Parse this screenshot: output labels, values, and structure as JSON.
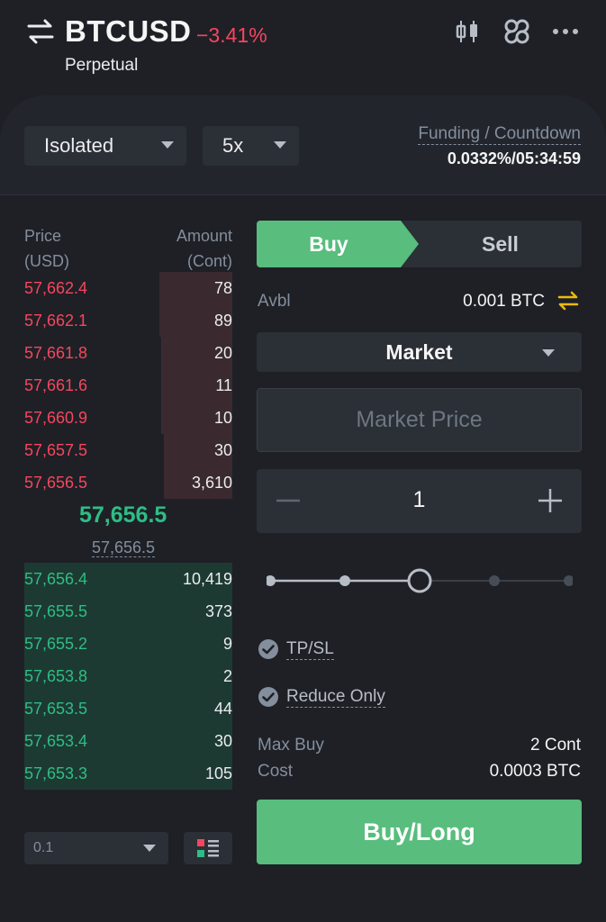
{
  "header": {
    "symbol": "BTCUSD",
    "change": "−3.41%",
    "contract_type": "Perpetual",
    "icons": [
      "swap-icon",
      "candlestick-chart-icon",
      "link-icon",
      "more-icon"
    ]
  },
  "settings": {
    "margin_mode": "Isolated",
    "leverage": "5x",
    "funding_label": "Funding / Countdown",
    "funding_value": "0.0332%/05:34:59"
  },
  "orderbook": {
    "price_header_1": "Price",
    "price_header_2": "(USD)",
    "amount_header_1": "Amount",
    "amount_header_2": "(Cont)",
    "asks": [
      {
        "price": "57,662.4",
        "amount": "78",
        "depth": 0.35
      },
      {
        "price": "57,662.1",
        "amount": "89",
        "depth": 0.35
      },
      {
        "price": "57,661.8",
        "amount": "20",
        "depth": 0.34
      },
      {
        "price": "57,661.6",
        "amount": "11",
        "depth": 0.34
      },
      {
        "price": "57,660.9",
        "amount": "10",
        "depth": 0.34
      },
      {
        "price": "57,657.5",
        "amount": "30",
        "depth": 0.33
      },
      {
        "price": "57,656.5",
        "amount": "3,610",
        "depth": 0.33
      }
    ],
    "last_price": "57,656.5",
    "mark_price": "57,656.5",
    "bids": [
      {
        "price": "57,656.4",
        "amount": "10,419",
        "depth": 1.0
      },
      {
        "price": "57,655.5",
        "amount": "373",
        "depth": 1.0
      },
      {
        "price": "57,655.2",
        "amount": "9",
        "depth": 1.0
      },
      {
        "price": "57,653.8",
        "amount": "2",
        "depth": 1.0
      },
      {
        "price": "57,653.5",
        "amount": "44",
        "depth": 1.0
      },
      {
        "price": "57,653.4",
        "amount": "30",
        "depth": 1.0
      },
      {
        "price": "57,653.3",
        "amount": "105",
        "depth": 1.0
      }
    ],
    "tick_size": "0.1"
  },
  "order_form": {
    "buy_tab": "Buy",
    "sell_tab": "Sell",
    "avbl_label": "Avbl",
    "avbl_value": "0.001 BTC",
    "order_type": "Market",
    "price_placeholder": "Market Price",
    "quantity": "1",
    "slider_percent": 50,
    "tpsl_label": "TP/SL",
    "reduce_only_label": "Reduce Only",
    "max_buy_label": "Max Buy",
    "max_buy_value": "2 Cont",
    "cost_label": "Cost",
    "cost_value": "0.0003 BTC",
    "submit_label": "Buy/Long"
  },
  "colors": {
    "buy": "#58bd7d",
    "sell": "#f6465d",
    "background": "#1e2026",
    "panel": "#2b2f36"
  }
}
